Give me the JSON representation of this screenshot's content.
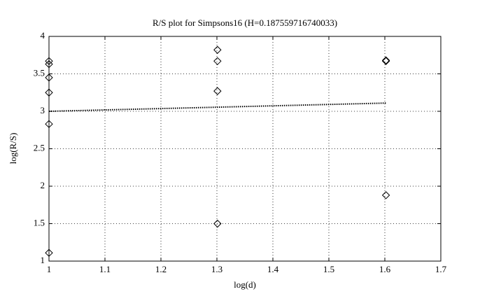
{
  "chart_data": {
    "type": "scatter",
    "title": "R/S plot for Simpsons16 (H=0.187559716740033)",
    "x_label": "log(d)",
    "y_label": "log(R/S)",
    "xlim": [
      1,
      1.7
    ],
    "xticks": [
      1,
      1.1,
      1.2,
      1.3,
      1.4,
      1.5,
      1.6,
      1.7
    ],
    "ylim": [
      1,
      4
    ],
    "yticks": [
      1,
      1.5,
      2,
      2.5,
      3,
      3.5,
      4
    ],
    "grid": true,
    "series": [
      {
        "type": "scatter",
        "marker": "diamond",
        "color": "#000000",
        "x": [
          1,
          1,
          1,
          1,
          1,
          1,
          1.301,
          1.301,
          1.301,
          1.301,
          1.602,
          1.602,
          1.602
        ],
        "values": [
          3.67,
          3.63,
          3.45,
          3.25,
          2.83,
          1.11,
          3.82,
          3.67,
          3.27,
          1.5,
          3.68,
          3.67,
          1.88
        ]
      },
      {
        "type": "line",
        "style": "dotted",
        "color": "#000000",
        "x": [
          1,
          1.602
        ],
        "values": [
          3.0,
          3.11
        ]
      }
    ]
  }
}
